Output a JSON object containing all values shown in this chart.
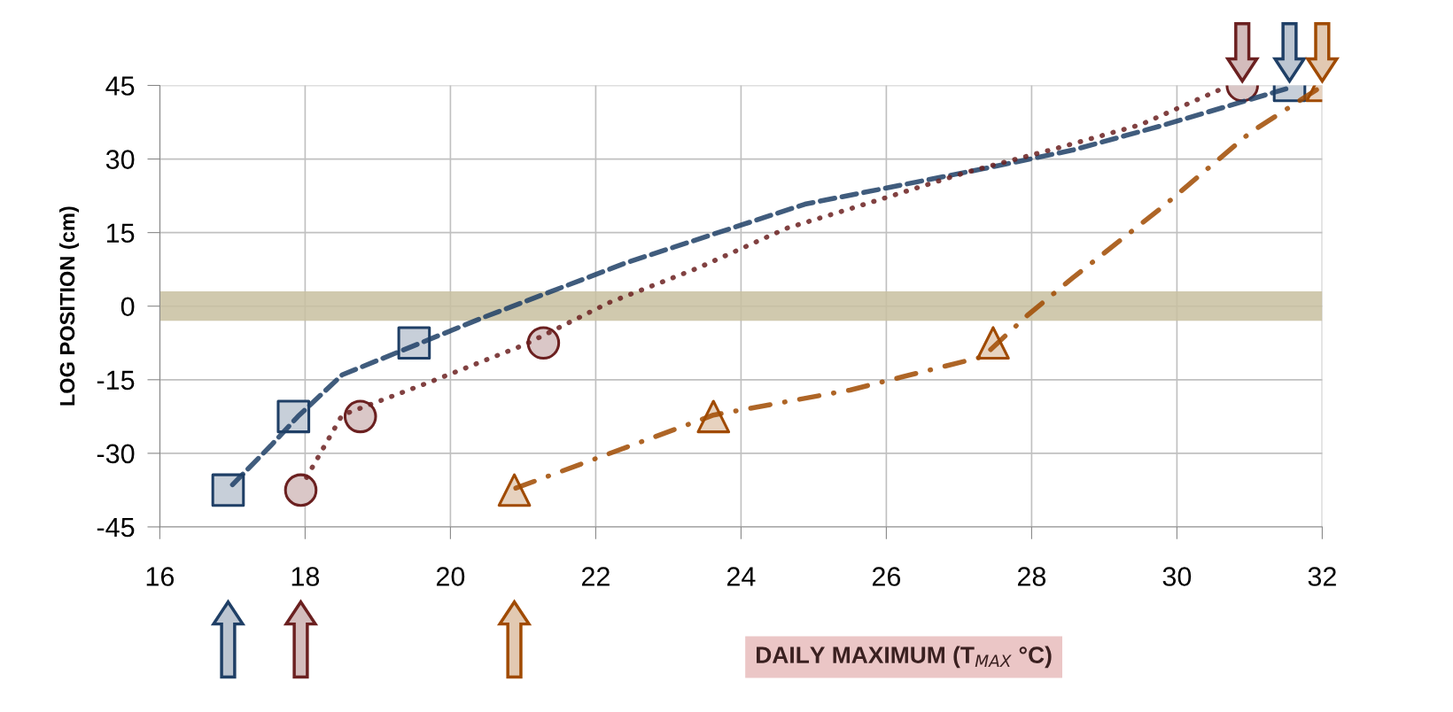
{
  "chart_data": {
    "type": "scatter",
    "xlabel": "DAILY MAXIMUM (T$_{MAX}$ °C)",
    "ylabel": "LOG POSITION (cm)",
    "xlim": [
      16,
      32
    ],
    "xticks": [
      16,
      18,
      20,
      22,
      24,
      26,
      28,
      30,
      32
    ],
    "ylim": [
      -45,
      45
    ],
    "yticks": [
      -45,
      -30,
      -15,
      0,
      15,
      30,
      45
    ],
    "grid": true,
    "series": [
      {
        "type": "line",
        "color": "#1f3f66",
        "line_style": "dashed",
        "marker": "none",
        "x": [
          17.0,
          17.53,
          17.9,
          18.51,
          19.49,
          20.47,
          22.43,
          24.88,
          27.33,
          28.56,
          29.79,
          31.5
        ],
        "values": [
          -36.4,
          -28.4,
          -22.5,
          -14,
          -8.1,
          -2.2,
          8.9,
          20.8,
          28.0,
          31.8,
          36.8,
          44.3
        ]
      },
      {
        "type": "line",
        "color": "#6b2020",
        "line_style": "dotted",
        "marker": "none",
        "x": [
          18.02,
          18.51,
          19.73,
          21.03,
          22.18,
          23.41,
          24.63,
          25.86,
          27.08,
          28.3,
          29.5,
          30.6
        ],
        "values": [
          -34.9,
          -22.2,
          -15.4,
          -7.8,
          0.7,
          7.8,
          15.9,
          21.5,
          27.2,
          32,
          37,
          44.2
        ]
      },
      {
        "type": "line",
        "color": "#a04a00",
        "line_style": "dashdot",
        "marker": "none",
        "x": [
          20.9,
          23.62,
          25.5,
          27.33,
          27.94,
          28.56,
          29.79,
          31.01,
          31.93
        ],
        "values": [
          -37.1,
          -22.2,
          -17.1,
          -10.3,
          -1.9,
          5.7,
          20.1,
          35.4,
          44.2
        ]
      },
      {
        "color": "#1f3f66",
        "marker": "square",
        "x": [
          16.94,
          17.84,
          19.5,
          31.55
        ],
        "values": [
          -37.5,
          -22.5,
          -7.5,
          45
        ]
      },
      {
        "color": "#6b2020",
        "marker": "circle",
        "x": [
          17.94,
          18.76,
          21.28,
          30.9
        ],
        "values": [
          -37.5,
          -22.5,
          -7.5,
          45
        ]
      },
      {
        "color": "#a04a00",
        "marker": "triangle",
        "x": [
          20.88,
          23.62,
          27.47,
          32.0
        ],
        "values": [
          -37.5,
          -22.5,
          -7.5,
          45
        ]
      }
    ],
    "bands": [
      {
        "axis": "y",
        "from": -3,
        "to": 3,
        "color": "#c8c0a0"
      }
    ]
  }
}
